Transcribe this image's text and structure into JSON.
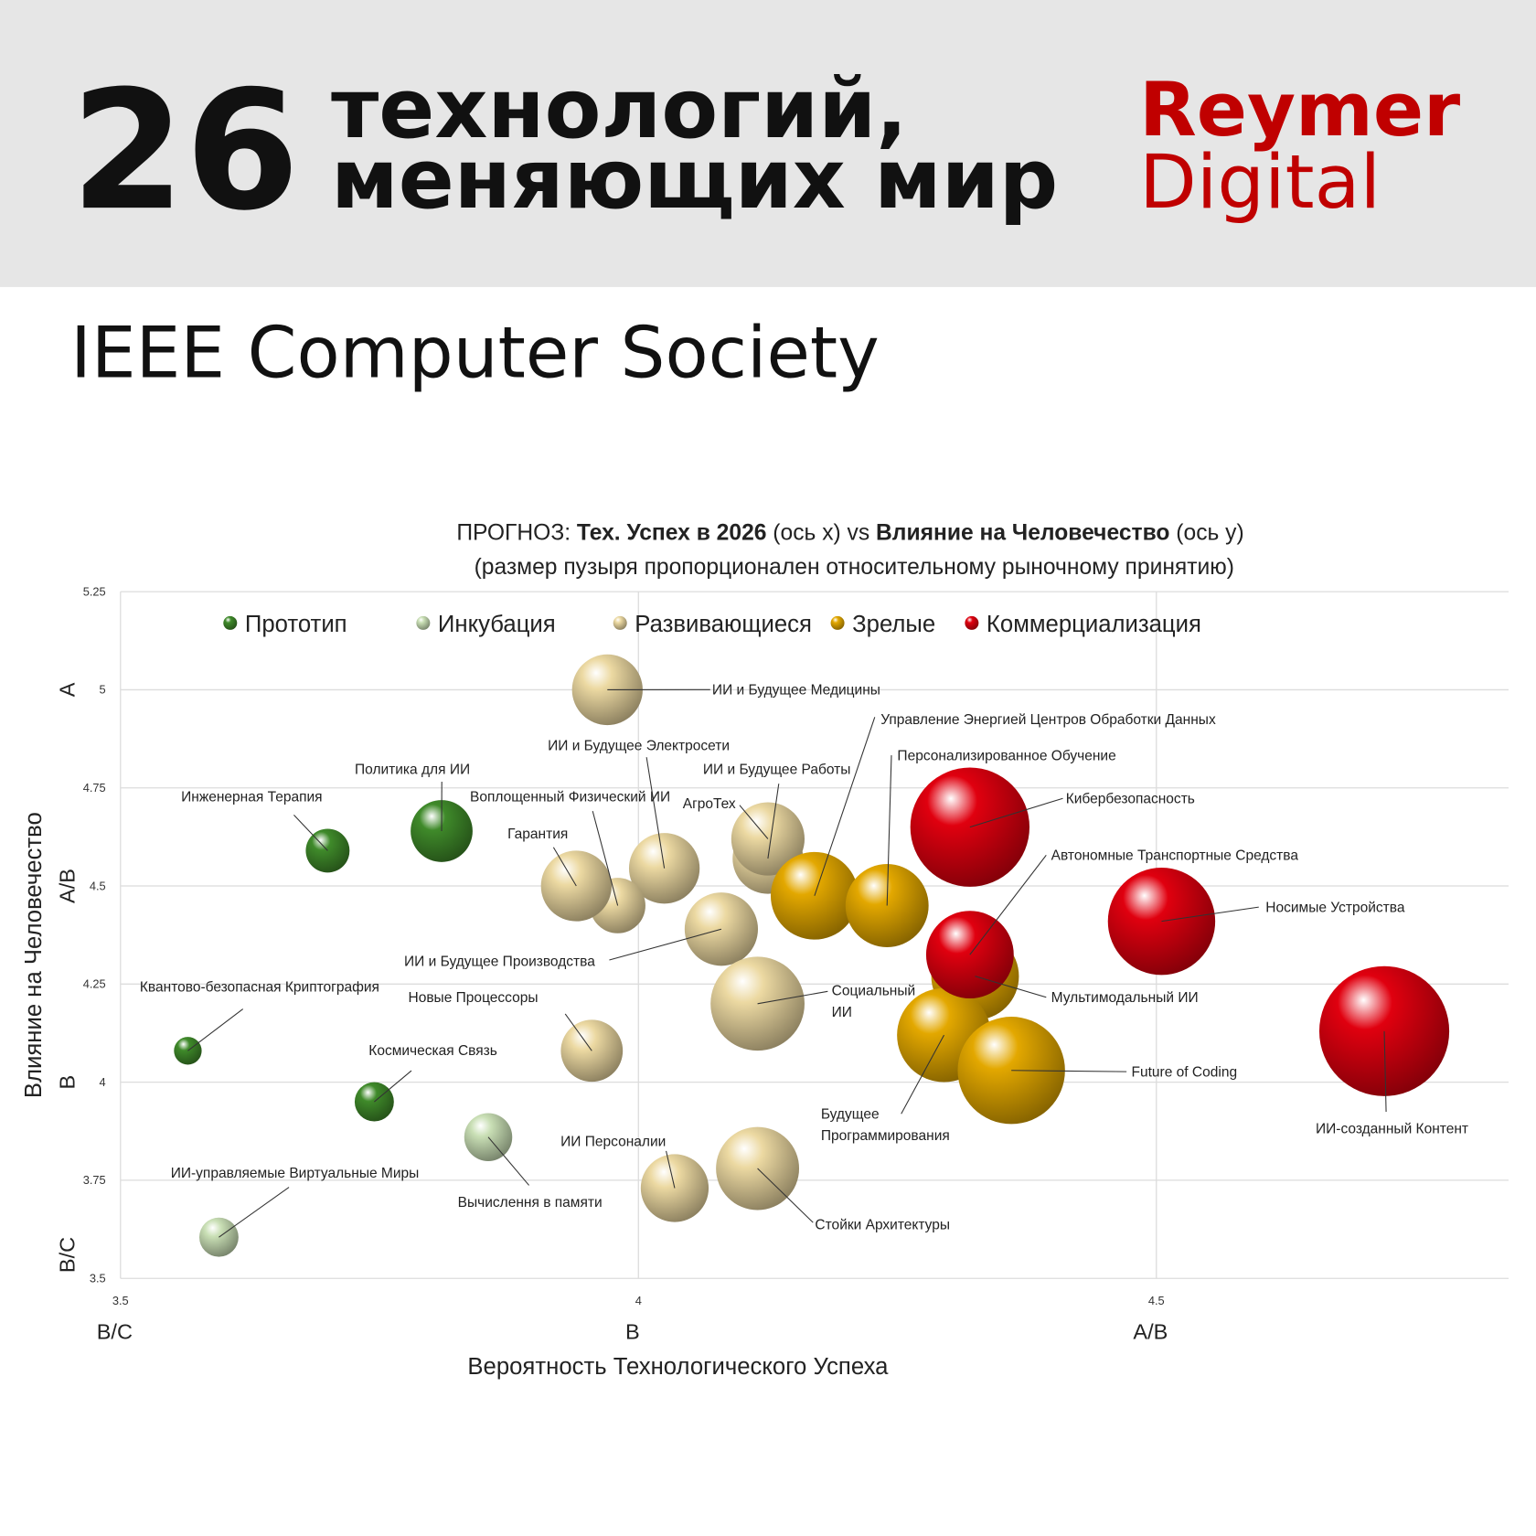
{
  "header": {
    "number": "26",
    "title_lines": [
      "технологий,",
      "меняющих мир"
    ],
    "brand": [
      "Reymer",
      "Digital"
    ],
    "source": "IEEE Computer Society"
  },
  "chart_data": {
    "type": "bubble",
    "title": [
      "ПРОГНОЗ: ",
      "Тех. Успех в 2026",
      " (ось x) vs ",
      "Влияние на Человечество",
      " (ось y)"
    ],
    "subtitle": "(размер пузыря пропорционален относительному рыночному принятию)",
    "x_label": "Вероятность Технологического Успеха",
    "y_label": "Влияние на Человечество",
    "xlim": [
      3.5,
      4.84
    ],
    "ylim": [
      3.5,
      5.25
    ],
    "xticks": [
      3.5,
      4,
      4.5
    ],
    "yticks": [
      3.5,
      3.75,
      4,
      4.25,
      4.5,
      4.75,
      5,
      5.25
    ],
    "x_grades": [
      {
        "value": 3.5,
        "label": "B/C"
      },
      {
        "value": 4,
        "label": "B"
      },
      {
        "value": 4.5,
        "label": "A/B"
      }
    ],
    "y_grades": [
      {
        "value": 3.56,
        "label": "B/C"
      },
      {
        "value": 4,
        "label": "B"
      },
      {
        "value": 4.5,
        "label": "A/B"
      },
      {
        "value": 5,
        "label": "A"
      }
    ],
    "grid": true,
    "legend": "top",
    "series": [
      {
        "name": "Прототип",
        "color": "#3f8a2a",
        "labels": [
          "Инженерная Терапия",
          "Политика для ИИ",
          "Квантово-безопасная Криптография",
          "Космическая Связь"
        ],
        "x": [
          3.7,
          3.81,
          3.565,
          3.745
        ],
        "y": [
          4.59,
          4.64,
          4.08,
          3.95
        ],
        "size": [
          5,
          10,
          2,
          4
        ]
      },
      {
        "name": "Инкубация",
        "color": "#c9dfb5",
        "labels": [
          "Вычислення в памяти",
          "ИИ-управляемые Виртуальные Миры"
        ],
        "x": [
          3.855,
          3.595
        ],
        "y": [
          3.86,
          3.605
        ],
        "size": [
          6,
          4
        ]
      },
      {
        "name": "Развивающиеся",
        "color": "#ecd9a2",
        "labels": [
          "ИИ и Будущее Медицины",
          "ИИ и Будущее Электросети",
          "Воплощенный Физический ИИ",
          "Гарантия",
          "ИИ и Будущее Работы",
          "АгроТех",
          "ИИ и Будущее Производства",
          [
            "Социальный",
            "ИИ"
          ],
          "Новые Процессоры",
          "ИИ Персоналии",
          "Стойки Архитектуры"
        ],
        "x": [
          3.97,
          4.025,
          3.98,
          3.94,
          4.125,
          4.125,
          4.08,
          4.115,
          3.955,
          4.035,
          4.115
        ],
        "y": [
          5.0,
          4.545,
          4.45,
          4.5,
          4.57,
          4.62,
          4.39,
          4.2,
          4.08,
          3.73,
          3.78
        ],
        "size": [
          13,
          13,
          8,
          13,
          13,
          14,
          14,
          23,
          10,
          12,
          18
        ]
      },
      {
        "name": "Зрелые",
        "color": "#e3a800",
        "labels": [
          "Управление Энергией Центров Обработки Данных",
          "Персонализированное Обучение",
          "Мультимодальный ИИ",
          [
            "Будущее",
            "Программирования"
          ],
          "Future of Coding"
        ],
        "x": [
          4.17,
          4.24,
          4.325,
          4.295,
          4.36
        ],
        "y": [
          4.475,
          4.45,
          4.27,
          4.12,
          4.03
        ],
        "size": [
          20,
          18,
          20,
          23,
          30
        ]
      },
      {
        "name": "Коммерциализация",
        "color": "#e0000f",
        "labels": [
          "Кибербезопасность",
          "Автономные Транспортные Средства",
          "Носимые Устройства",
          "ИИ-созданный Контент"
        ],
        "x": [
          4.32,
          4.32,
          4.505,
          4.72
        ],
        "y": [
          4.65,
          4.325,
          4.41,
          4.13
        ],
        "size": [
          37,
          20,
          30,
          44
        ]
      }
    ]
  }
}
